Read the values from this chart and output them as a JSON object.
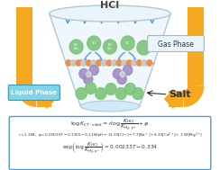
{
  "bg_color": "#ffffff",
  "funnel_body_color": "#eaf5fb",
  "funnel_edge_color": "#b0c8d8",
  "hcl_text": "HCl",
  "hcl_arrow_color": "#4a90d9",
  "gas_phase_text": "Gas Phase",
  "gas_phase_box_color": "#eaf5fb",
  "gas_phase_border": "#99bbcc",
  "liquid_phase_text": "Liquid Phase",
  "liquid_phase_box_color": "#7fd4e8",
  "salt_text": "Salt",
  "orange_color": "#f5a820",
  "formula_box_border": "#5599cc",
  "formula_bg": "#ffffff",
  "eq1": "$\\log K_{CT\\cdot eSalt} = r\\log\\dfrac{K_{HCl}}{K_{H_2,p^\\circ}} + \\varphi$",
  "eq2": "$r = 1.368,\\ \\varphi = 0.00016T - 0.1905 - 0.1160\\mathrm{pH} - 11.35[\\mathrm{Cl^-}] - 7.7[\\mathrm{Na^+}] + 4.39[\\mathrm{Ca^{2+}}] + 1.94[\\mathrm{Mg^{2+}}]$",
  "eq3": "$\\exp\\!\\left(\\log\\dfrac{K_{HCl}}{K_{H_2,p^\\circ}}\\right) = 0.00233T - 0.334$",
  "green_circle_color": "#7dc47a",
  "purple_circle_color": "#9b87c0",
  "orange_dot_color": "#e89050",
  "blue_arrow_color": "#5599dd",
  "grey_dot_color": "#c8c8c8"
}
